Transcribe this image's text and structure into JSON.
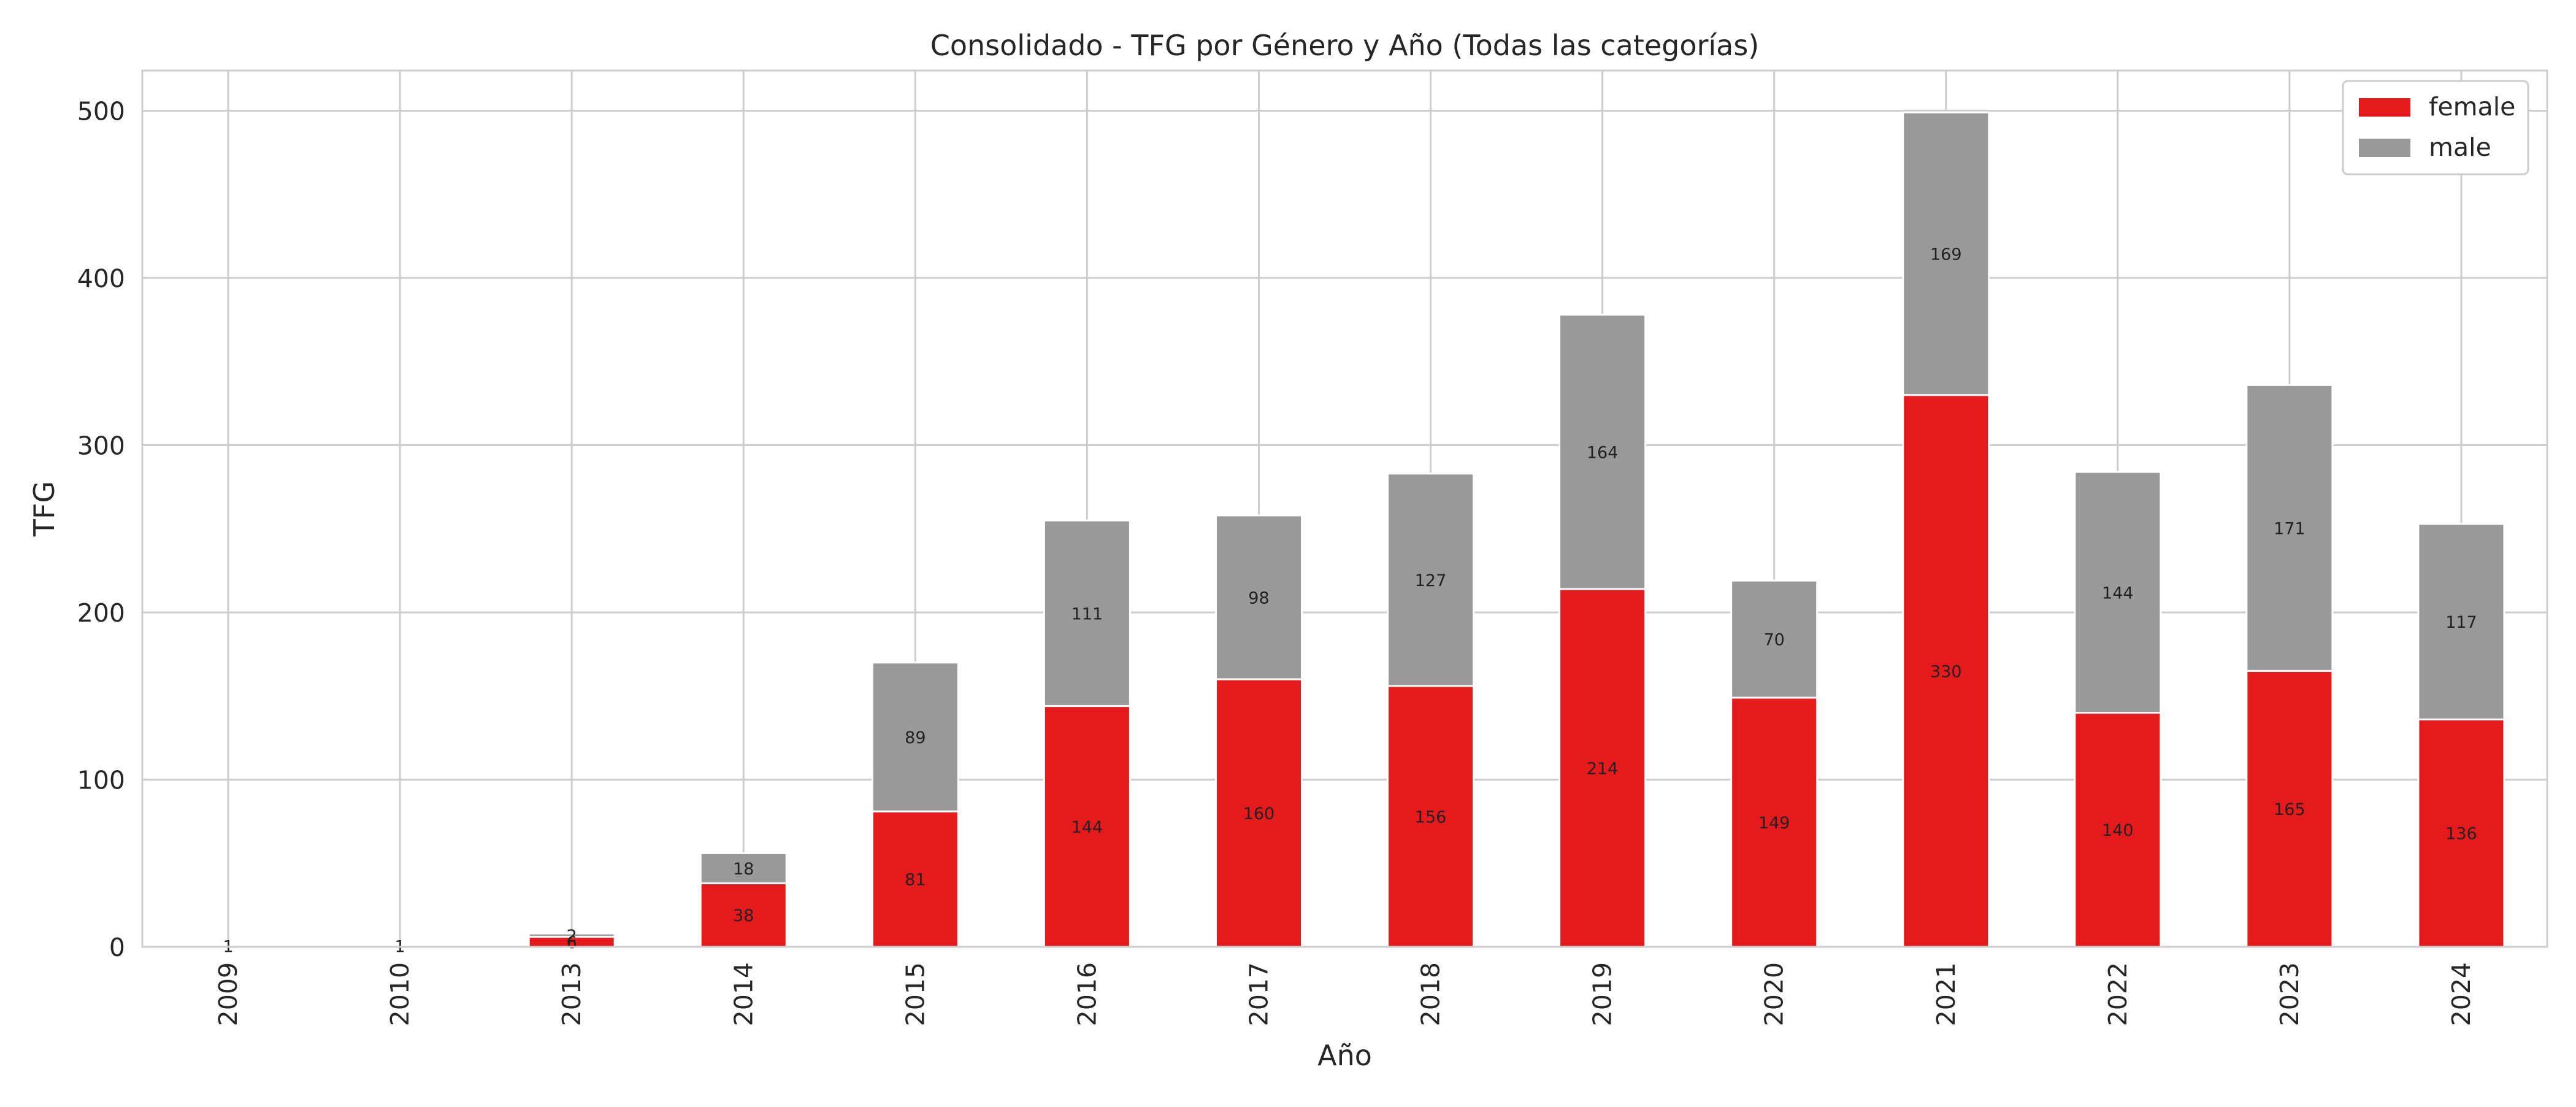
{
  "chart_data": {
    "type": "bar",
    "stacked": true,
    "title": "Consolidado - TFG por Género y Año (Todas las categorías)",
    "xlabel": "Año",
    "ylabel": "TFG",
    "categories": [
      "2009",
      "2010",
      "2013",
      "2014",
      "2015",
      "2016",
      "2017",
      "2018",
      "2019",
      "2020",
      "2021",
      "2022",
      "2023",
      "2024"
    ],
    "series": [
      {
        "name": "female",
        "color": "#e41a1c",
        "values": [
          0,
          0,
          6,
          38,
          81,
          144,
          160,
          156,
          214,
          149,
          330,
          140,
          165,
          136
        ]
      },
      {
        "name": "male",
        "color": "#999999",
        "values": [
          1,
          1,
          2,
          18,
          89,
          111,
          98,
          127,
          164,
          70,
          169,
          144,
          171,
          117
        ]
      }
    ],
    "data_labels": {
      "female": [
        "",
        "",
        "6",
        "38",
        "81",
        "144",
        "160",
        "156",
        "214",
        "149",
        "330",
        "140",
        "165",
        "136"
      ],
      "male": [
        "1",
        "1",
        "2",
        "18",
        "89",
        "111",
        "98",
        "127",
        "164",
        "70",
        "169",
        "144",
        "171",
        "117"
      ]
    },
    "y_ticks": [
      0,
      100,
      200,
      300,
      400,
      500
    ],
    "ylim": [
      0,
      524
    ],
    "grid": true,
    "legend": "top-right"
  }
}
